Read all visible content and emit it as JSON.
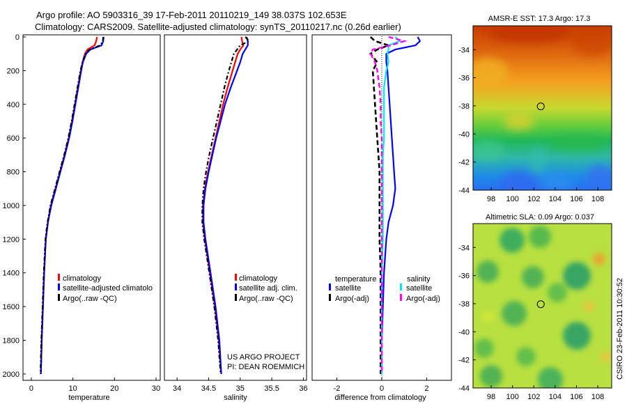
{
  "header": {
    "line1": "Argo profile: AO 5903316_39 17-Feb-2011 20110219_149 38.037S 102.653E",
    "line2": "Climatology: CARS2009. Satellite-adjusted climatology: synTS_20110217.nc (0.26d earlier)"
  },
  "colors": {
    "climatology": "#ff0000",
    "satellite": "#0000ff",
    "argo": "#000000",
    "sal_satellite": "#00e5ee",
    "sal_argo": "#ff00ff"
  },
  "depth_ticks": [
    "0",
    "200",
    "400",
    "600",
    "800",
    "1000",
    "1200",
    "1400",
    "1600",
    "1800",
    "2000"
  ],
  "chart_data": [
    {
      "type": "line",
      "name": "temperature-profile",
      "xlabel": "temperature",
      "ylabel": "",
      "xlim": [
        -2,
        31
      ],
      "ylim": [
        2050,
        0
      ],
      "y_inverted": true,
      "xticks": [
        "0",
        "10",
        "20",
        "30"
      ],
      "xtick_values": [
        0,
        10,
        20,
        30
      ],
      "depth": [
        0,
        25,
        50,
        75,
        100,
        150,
        200,
        300,
        400,
        500,
        600,
        700,
        800,
        900,
        1000,
        1100,
        1200,
        1400,
        1600,
        1800,
        2000
      ],
      "series": [
        {
          "name": "climatology",
          "values": [
            15.8,
            15.6,
            15.2,
            13.5,
            12.9,
            12.3,
            11.9,
            11.2,
            10.5,
            9.8,
            9.0,
            8.0,
            6.9,
            5.8,
            4.7,
            4.0,
            3.5,
            3.1,
            2.8,
            2.5,
            2.3
          ]
        },
        {
          "name": "satellite-adjusted climatology",
          "values": [
            17.4,
            17.3,
            16.9,
            14.2,
            13.2,
            12.4,
            12.0,
            11.3,
            10.6,
            9.9,
            9.1,
            8.1,
            7.0,
            5.9,
            4.8,
            4.0,
            3.5,
            3.1,
            2.8,
            2.5,
            2.3
          ]
        },
        {
          "name": "Argo(..raw -QC)",
          "values": [
            17.3,
            17.2,
            16.6,
            14.0,
            13.0,
            12.3,
            11.8,
            11.1,
            10.4,
            9.7,
            8.9,
            7.9,
            6.8,
            5.7,
            4.6,
            3.9,
            3.4,
            3.0,
            2.7,
            2.4,
            2.2
          ]
        }
      ],
      "legend": [
        "climatology",
        "satellite-adjusted climatology",
        "Argo(..raw -QC)"
      ],
      "legend_shown": [
        "climatology",
        "satellite-adjusted climatolo"
      ]
    },
    {
      "type": "line",
      "name": "salinity-profile",
      "xlabel": "salinity",
      "ylabel": "",
      "xlim": [
        33.8,
        36.05
      ],
      "ylim": [
        2050,
        0
      ],
      "y_inverted": true,
      "xticks": [
        "34",
        "34.5",
        "35",
        "35.5",
        "36"
      ],
      "xtick_values": [
        34,
        34.5,
        35,
        35.5,
        36
      ],
      "depth": [
        0,
        25,
        50,
        75,
        100,
        150,
        200,
        300,
        400,
        500,
        600,
        700,
        800,
        900,
        1000,
        1100,
        1200,
        1400,
        1600,
        1800,
        2000
      ],
      "series": [
        {
          "name": "climatology",
          "values": [
            35.02,
            35.03,
            35.05,
            35.0,
            34.96,
            34.92,
            34.88,
            34.8,
            34.73,
            34.67,
            34.61,
            34.55,
            34.49,
            34.44,
            34.41,
            34.41,
            34.44,
            34.52,
            34.6,
            34.66,
            34.7
          ]
        },
        {
          "name": "satellite adj. clim.",
          "values": [
            35.1,
            35.12,
            35.12,
            35.08,
            35.04,
            35.0,
            34.95,
            34.85,
            34.76,
            34.69,
            34.62,
            34.56,
            34.5,
            34.45,
            34.42,
            34.42,
            34.45,
            34.53,
            34.61,
            34.67,
            34.7
          ]
        },
        {
          "name": "Argo(..raw -QC)",
          "values": [
            35.08,
            35.14,
            35.0,
            34.95,
            34.9,
            34.86,
            34.82,
            34.75,
            34.69,
            34.63,
            34.57,
            34.51,
            34.46,
            34.42,
            34.4,
            34.4,
            34.43,
            34.51,
            34.59,
            34.65,
            34.69
          ]
        }
      ],
      "legend": [
        "climatology",
        "satellite adj. clim.",
        "Argo(..raw -QC)"
      ],
      "annotation": [
        "US ARGO PROJECT",
        "PI: DEAN ROEMMICH"
      ]
    },
    {
      "type": "line",
      "name": "difference-profile",
      "xlabel": "difference from climatology",
      "ylabel": "",
      "xlim": [
        -3.1,
        3.1
      ],
      "ylim": [
        2050,
        0
      ],
      "y_inverted": true,
      "xticks": [
        "-2",
        "0",
        "2"
      ],
      "xtick_values": [
        -2,
        0,
        2
      ],
      "depth": [
        0,
        25,
        50,
        75,
        100,
        150,
        200,
        300,
        400,
        500,
        600,
        700,
        800,
        900,
        1000,
        1100,
        1200,
        1400,
        1600,
        1800,
        2000
      ],
      "series": [
        {
          "name": "temperature satellite",
          "values": [
            1.6,
            1.7,
            1.5,
            0.6,
            0.2,
            0.2,
            0.25,
            0.3,
            0.35,
            0.4,
            0.45,
            0.5,
            0.55,
            0.6,
            0.5,
            0.3,
            0.2,
            0.1,
            0.05,
            0.0,
            0.0
          ]
        },
        {
          "name": "temperature Argo(-adj)",
          "values": [
            -0.5,
            -0.3,
            0.3,
            -0.2,
            -0.5,
            -0.2,
            -0.4,
            -0.35,
            -0.3,
            -0.25,
            -0.2,
            -0.15,
            -0.1,
            -0.1,
            -0.1,
            -0.1,
            -0.1,
            -0.05,
            -0.05,
            -0.05,
            -0.05
          ]
        },
        {
          "name": "salinity satellite",
          "values": [
            0.6,
            0.8,
            0.3,
            0.3,
            0.25,
            0.3,
            0.2,
            0.1,
            0.1,
            0.1,
            0.1,
            0.05,
            0.05,
            0.05,
            0.05,
            0.05,
            0.05,
            0.0,
            0.0,
            0.0,
            0.0
          ]
        },
        {
          "name": "salinity Argo(-adj)",
          "values": [
            0.3,
            1.0,
            0.4,
            -0.4,
            -0.5,
            -0.3,
            -0.2,
            -0.1,
            -0.05,
            -0.05,
            0.0,
            0.0,
            0.0,
            0.0,
            0.0,
            0.0,
            0.0,
            0.0,
            0.0,
            0.0,
            0.0
          ]
        }
      ],
      "legend_headers": [
        "temperature",
        "salinity"
      ],
      "legend_left": [
        "satellite",
        "Argo(-adj)"
      ],
      "legend_right": [
        "satellite",
        "Argo(-adj)"
      ]
    },
    {
      "type": "heatmap",
      "name": "sst-map",
      "title": "AMSR-E SST: 17.3 Argo: 17.3",
      "xlim": [
        96.3,
        109.3
      ],
      "ylim": [
        -44,
        -32.3
      ],
      "xticks": [
        "98",
        "100",
        "102",
        "104",
        "106",
        "108"
      ],
      "xtick_values": [
        98,
        100,
        102,
        104,
        106,
        108
      ],
      "yticks": [
        "-34",
        "-36",
        "-38",
        "-40",
        "-42",
        "-44"
      ],
      "ytick_values": [
        -34,
        -36,
        -38,
        -40,
        -42,
        -44
      ],
      "marker": {
        "lon": 102.653,
        "lat": -38.037
      }
    },
    {
      "type": "heatmap",
      "name": "sla-map",
      "title": "Altimetric SLA: 0.09 Argo: 0.037",
      "xlim": [
        96.3,
        109.3
      ],
      "ylim": [
        -44,
        -32.3
      ],
      "xticks": [
        "98",
        "100",
        "102",
        "104",
        "106",
        "108"
      ],
      "xtick_values": [
        98,
        100,
        102,
        104,
        106,
        108
      ],
      "yticks": [
        "-34",
        "-36",
        "-38",
        "-40",
        "-42",
        "-44"
      ],
      "ytick_values": [
        -34,
        -36,
        -38,
        -40,
        -42,
        -44
      ],
      "marker": {
        "lon": 102.653,
        "lat": -38.037
      }
    }
  ],
  "credit": "CSIRO 23-Feb-2011 10:30:52"
}
